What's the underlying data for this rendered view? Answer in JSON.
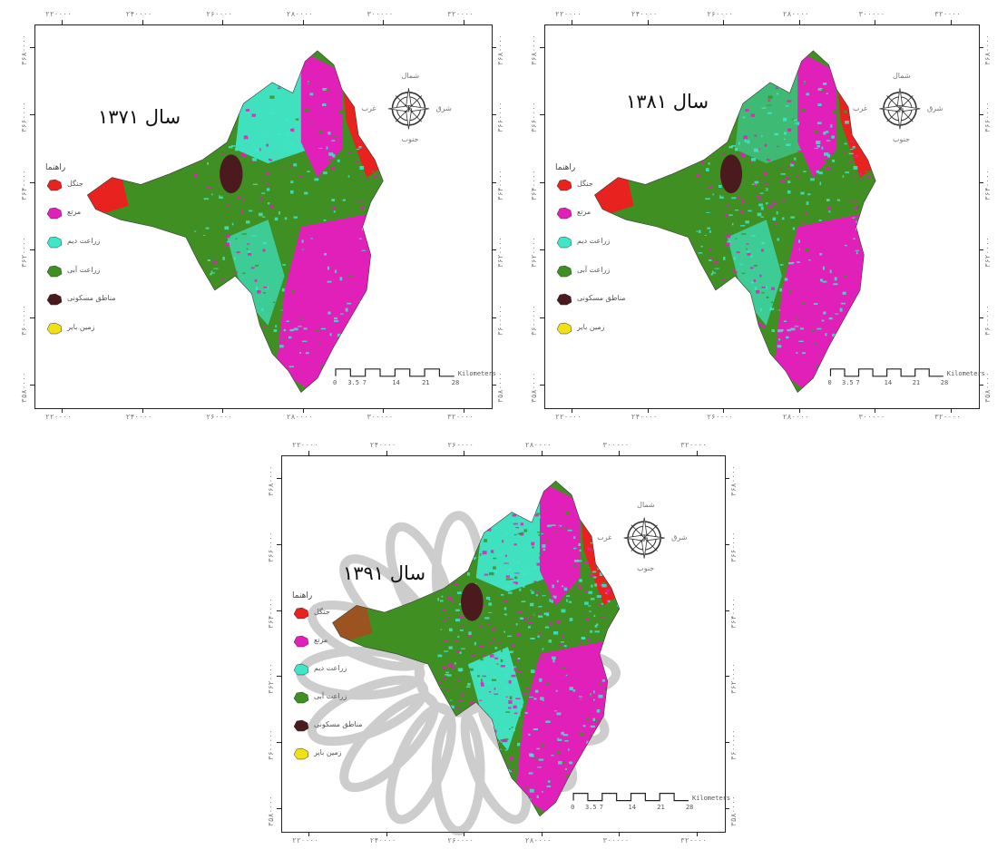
{
  "palette": {
    "forest": "#e8231f",
    "rangeland": "#e020b8",
    "dry_farming": "#3fe6c8",
    "irrigated_farming": "#3f8f22",
    "residential": "#4a1a1e",
    "bare_land": "#f1e014"
  },
  "icons": {
    "compass": "compass-rose-icon",
    "scale": "scale-bar-icon",
    "watermark": "rosette-watermark-icon"
  },
  "x_tick_labels": [
    "۲۲۰۰۰۰",
    "۲۴۰۰۰۰",
    "۲۶۰۰۰۰",
    "۲۸۰۰۰۰",
    "۳۰۰۰۰۰",
    "۳۲۰۰۰۰"
  ],
  "y_tick_labels": [
    "۳۶۸۰۰۰۰",
    "۳۶۶۰۰۰۰",
    "۳۶۴۰۰۰۰",
    "۳۶۲۰۰۰۰",
    "۳۶۰۰۰۰۰",
    "۳۵۸۰۰۰۰"
  ],
  "legend": {
    "title": "راهنما",
    "items": [
      {
        "key": "forest",
        "label": "جنگل"
      },
      {
        "key": "rangeland",
        "label": "مرتع"
      },
      {
        "key": "dry_farming",
        "label": "زراعت دیم"
      },
      {
        "key": "irrigated_farming",
        "label": "زراعت آبی"
      },
      {
        "key": "residential",
        "label": "مناطق مسکونی"
      },
      {
        "key": "bare_land",
        "label": "زمین بایر"
      }
    ]
  },
  "scale_bar": {
    "ticks": [
      "0",
      "3.5",
      "7",
      "14",
      "21",
      "28"
    ],
    "unit": "Kilometers"
  },
  "compass": {
    "n": "شمال",
    "s": "جنوب",
    "e": "شرق",
    "w": "غرب"
  },
  "maps": [
    {
      "title": "سال ۱۳۷۱",
      "year": 1371
    },
    {
      "title": "سال ۱۳۸۱",
      "year": 1381
    },
    {
      "title": "سال ۱۳۹۱",
      "year": 1391
    }
  ]
}
